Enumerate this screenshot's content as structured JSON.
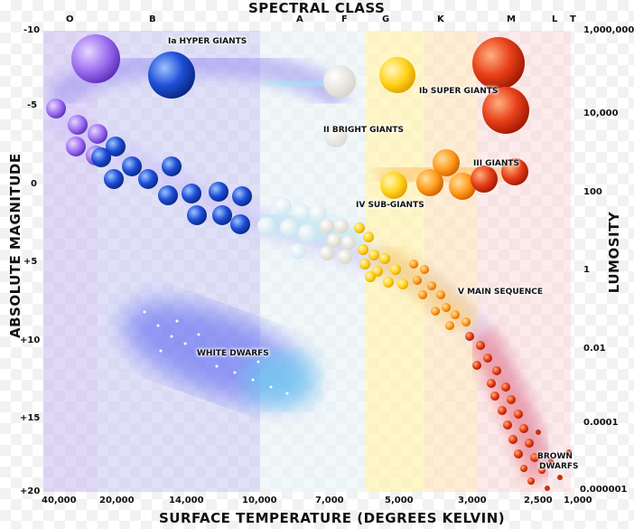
{
  "titles": {
    "top": "SPECTRAL CLASS",
    "bottom": "SURFACE TEMPERATURE (DEGREES KELVIN)",
    "left": "ABSOLUTE MAGNITUDE",
    "right": "LUMOSITY"
  },
  "spectral_classes": [
    "O",
    "B",
    "A",
    "F",
    "G",
    "K",
    "M",
    "L",
    "T"
  ],
  "magnitude_ticks": [
    "-10",
    "-5",
    "0",
    "+5",
    "+10",
    "+15",
    "+20"
  ],
  "luminosity_ticks": [
    "1,000,000",
    "10,000",
    "100",
    "1",
    "0.01",
    "0.0001",
    "0.000001"
  ],
  "temperature_ticks": [
    "40,000",
    "20,000",
    "14,000",
    "10,000",
    "7,000",
    "5,000",
    "3,000",
    "2,500",
    "1,000"
  ],
  "regions": {
    "hyper_giants": "Ia HYPER GIANTS",
    "super_giants": "Ib SUPER GIANTS",
    "bright_giants": "II BRIGHT GIANTS",
    "giants": "III GIANTS",
    "sub_giants": "IV SUB-GIANTS",
    "main_sequence": "V MAIN SEQUENCE",
    "white_dwarfs": "WHITE DWARFS",
    "brown_dwarfs_line1": "BROWN",
    "brown_dwarfs_line2": "DWARFS"
  },
  "colors": {
    "O": "#9b6cf0",
    "B": "#1e4fd8",
    "A": "#dfeef5",
    "F": "#f0f0f0",
    "G": "#ffd21a",
    "K": "#ff9a1a",
    "M": "#e8401a",
    "band_O": "#c9b8f2",
    "band_B": "#c6c8f4",
    "band_A": "#e8f4f7",
    "band_G": "#fff4b0",
    "band_K": "#ffe2b8",
    "band_M": "#fbd2d2"
  }
}
